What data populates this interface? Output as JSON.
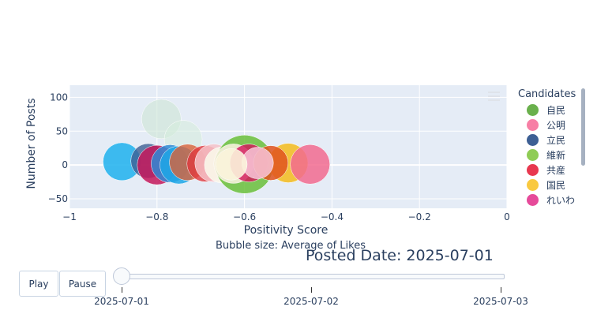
{
  "chart_data": {
    "type": "scatter",
    "subtype": "bubble",
    "xlabel": "Positivity Score",
    "ylabel": "Number of Posts",
    "xlim": [
      -1,
      0
    ],
    "ylim": [
      -64,
      118
    ],
    "x_ticks": [
      "−1",
      "−0.8",
      "−0.6",
      "−0.4",
      "−0.2",
      "0"
    ],
    "x_tick_values": [
      -1,
      -0.8,
      -0.6,
      -0.4,
      -0.2,
      0
    ],
    "y_ticks": [
      "100",
      "50",
      "0",
      "−50"
    ],
    "y_tick_values": [
      100,
      50,
      0,
      -50
    ],
    "grid": true,
    "size_note": "Bubble size: Average of Likes",
    "legend_position": "right",
    "legend_title": "Candidates",
    "legend": [
      {
        "name": "自民",
        "color": "#6ab04c"
      },
      {
        "name": "公明",
        "color": "#f77fa5"
      },
      {
        "name": "立民",
        "color": "#3d5f94"
      },
      {
        "name": "維新",
        "color": "#8fcc55"
      },
      {
        "name": "共産",
        "color": "#e8384f"
      },
      {
        "name": "国民",
        "color": "#f9c940"
      },
      {
        "name": "れいわ",
        "color": "#e64a9a"
      }
    ],
    "points": [
      {
        "x": -0.79,
        "y": 68,
        "size": 25,
        "color": "#cde6d6",
        "opacity": 0.6
      },
      {
        "x": -0.74,
        "y": 38,
        "size": 24,
        "color": "#d6ecde",
        "opacity": 0.6
      },
      {
        "x": -0.88,
        "y": 5,
        "size": 24,
        "color": "#29b5ee",
        "opacity": 0.9
      },
      {
        "x": -0.82,
        "y": 6,
        "size": 22,
        "color": "#3d5f94",
        "opacity": 0.8
      },
      {
        "x": -0.8,
        "y": 0,
        "size": 25,
        "color": "#c4185a",
        "opacity": 0.85
      },
      {
        "x": -0.77,
        "y": 2,
        "size": 24,
        "color": "#2f8ad6",
        "opacity": 0.85
      },
      {
        "x": -0.75,
        "y": 0,
        "size": 24,
        "color": "#1ea7e6",
        "opacity": 0.85
      },
      {
        "x": -0.73,
        "y": 4,
        "size": 23,
        "color": "#d9633a",
        "opacity": 0.8
      },
      {
        "x": -0.69,
        "y": 2,
        "size": 23,
        "color": "#e03a3e",
        "opacity": 0.8
      },
      {
        "x": -0.67,
        "y": 3,
        "size": 24,
        "color": "#f6c2c8",
        "opacity": 0.85
      },
      {
        "x": -0.65,
        "y": 0,
        "size": 23,
        "color": "#faf7ea",
        "opacity": 0.9
      },
      {
        "x": -0.6,
        "y": 1,
        "size": 37,
        "color": "#6abf3a",
        "opacity": 0.85
      },
      {
        "x": -0.625,
        "y": 2,
        "size": 25,
        "color": "#f6f0dc",
        "opacity": 0.9
      },
      {
        "x": -0.59,
        "y": 3,
        "size": 24,
        "color": "#d4145a",
        "opacity": 0.8
      },
      {
        "x": -0.5,
        "y": 3,
        "size": 25,
        "color": "#f5bc1c",
        "opacity": 0.85
      },
      {
        "x": -0.54,
        "y": 3,
        "size": 22,
        "color": "#e0541e",
        "opacity": 0.85
      },
      {
        "x": -0.45,
        "y": 1,
        "size": 25,
        "color": "#f26b8f",
        "opacity": 0.85
      },
      {
        "x": -0.57,
        "y": 3,
        "size": 20,
        "color": "#f5bfd0",
        "opacity": 0.9
      },
      {
        "x": -0.63,
        "y": 1,
        "size": 20,
        "color": "#fbf4dc",
        "opacity": 0.9
      }
    ]
  },
  "controls": {
    "play_label": "Play",
    "pause_label": "Pause",
    "current_value": "Posted Date: 2025-07-01",
    "steps": [
      "2025-07-01",
      "2025-07-02",
      "2025-07-03"
    ],
    "active_step": 0
  }
}
